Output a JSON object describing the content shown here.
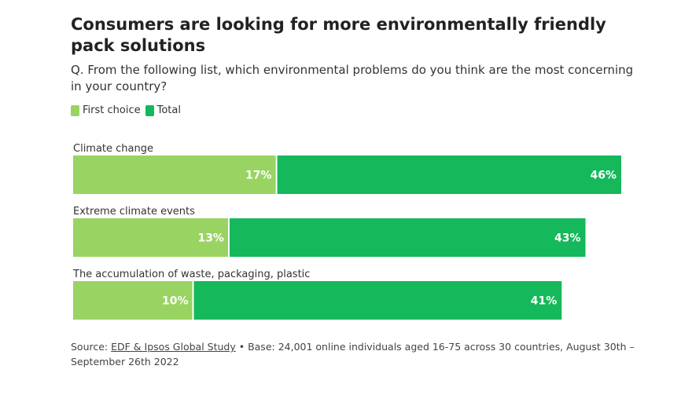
{
  "header": {
    "title": "Consumers are looking for more environmentally friendly pack solutions",
    "subtitle": "Q. From the following list, which environmental problems do you think are the most concerning in your country?"
  },
  "legend": [
    {
      "label": "First choice",
      "color": "#99d462"
    },
    {
      "label": "Total",
      "color": "#15b85a"
    }
  ],
  "chart_data": {
    "type": "bar",
    "orientation": "horizontal",
    "stacked_overlay": true,
    "title": "Consumers are looking for more environmentally friendly pack solutions",
    "categories": [
      "Climate change",
      "Extreme climate events",
      "The accumulation of waste, packaging, plastic"
    ],
    "series": [
      {
        "name": "First choice",
        "values": [
          17,
          13,
          10
        ],
        "color": "#99d462"
      },
      {
        "name": "Total",
        "values": [
          46,
          43,
          41
        ],
        "color": "#15b85a"
      }
    ],
    "value_labels": {
      "First choice": [
        "17%",
        "13%",
        "10%"
      ],
      "Total": [
        "46%",
        "43%",
        "41%"
      ]
    },
    "xlim": [
      0,
      46
    ],
    "grid": false,
    "legend_position": "top-left"
  },
  "footer": {
    "source_prefix": "Source: ",
    "source_link": "EDF & Ipsos Global Study",
    "source_rest": " • Base: 24,001 online individuals aged 16-75 across 30 countries, August 30th – September 26th 2022"
  }
}
